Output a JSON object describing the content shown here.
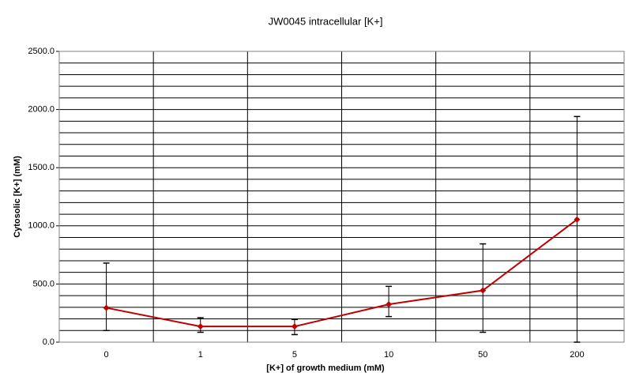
{
  "chart_data": {
    "type": "line",
    "title": "JW0045 intracellular [K+]",
    "x_label": "[K+] of growth medium (mM)",
    "y_label": "Cytosolic [K+] (mM)",
    "categories": [
      "0",
      "1",
      "5",
      "10",
      "50",
      "200"
    ],
    "series": [
      {
        "name": "JW0045",
        "color": "#c00000",
        "values": [
          295,
          135,
          135,
          325,
          445,
          1055
        ],
        "error_plus": [
          385,
          75,
          60,
          155,
          400,
          885
        ],
        "error_minus": [
          195,
          50,
          70,
          105,
          360,
          1055
        ]
      }
    ],
    "ylim": [
      0,
      2500
    ],
    "yticks": [
      {
        "value": 0,
        "label": "0.0"
      },
      {
        "value": 500,
        "label": "500.0"
      },
      {
        "value": 1000,
        "label": "1000.0"
      },
      {
        "value": 1500,
        "label": "1500.0"
      },
      {
        "value": 2000,
        "label": "2000.0"
      },
      {
        "value": 2500,
        "label": "2500.0"
      }
    ],
    "grid": true
  }
}
